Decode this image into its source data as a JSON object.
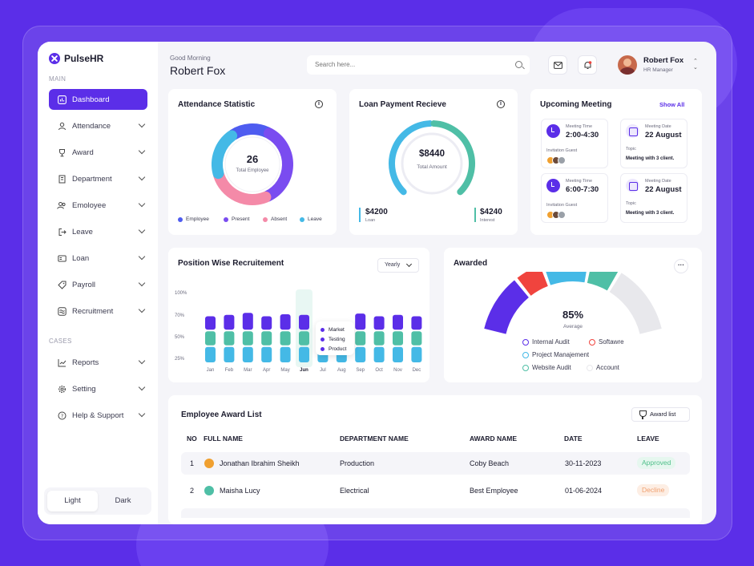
{
  "app": {
    "name": "PulseHR"
  },
  "colors": {
    "primary": "#5b2ee8",
    "teal": "#4fbfa6",
    "sky": "#44b9e6",
    "pink": "#f48aa8",
    "red": "#f0443e"
  },
  "sidebar": {
    "main_label": "MAIN",
    "cases_label": "CASES",
    "items": [
      {
        "label": "Dashboard",
        "icon": "chart-icon",
        "active": true
      },
      {
        "label": "Attendance",
        "icon": "user-icon"
      },
      {
        "label": "Award",
        "icon": "trophy-icon"
      },
      {
        "label": "Department",
        "icon": "building-icon"
      },
      {
        "label": "Emoloyee",
        "icon": "users-icon"
      },
      {
        "label": "Leave",
        "icon": "logout-icon"
      },
      {
        "label": "Loan",
        "icon": "card-icon"
      },
      {
        "label": "Payroll",
        "icon": "tag-icon"
      },
      {
        "label": "Recruitment",
        "icon": "wave-icon"
      }
    ],
    "cases": [
      {
        "label": "Reports",
        "icon": "line-chart-icon"
      },
      {
        "label": "Setting",
        "icon": "gear-icon"
      },
      {
        "label": "Help & Support",
        "icon": "help-icon"
      }
    ],
    "theme": {
      "light": "Light",
      "dark": "Dark"
    }
  },
  "header": {
    "greeting": "Good Morning",
    "name": "Robert Fox",
    "search_placeholder": "Search here...",
    "user": {
      "name": "Robert Fox",
      "role": "HR Manager"
    }
  },
  "attendance": {
    "title": "Attendance Statistic",
    "total": "26",
    "total_label": "Total Employee",
    "legend": [
      "Employee",
      "Present",
      "Absent",
      "Leave"
    ],
    "segments": [
      {
        "name": "Employee",
        "value": 17,
        "color": "#4e5cf0"
      },
      {
        "name": "Present",
        "value": 36,
        "color": "#7a4cf0"
      },
      {
        "name": "Absent",
        "value": 27,
        "color": "#f48aa8"
      },
      {
        "name": "Leave",
        "value": 20,
        "color": "#44b9e6"
      }
    ]
  },
  "loan": {
    "title": "Loan Payment Recieve",
    "amount": "$8440",
    "amount_label": "Total Amount",
    "left_value": "$4200",
    "left_label": "Loan",
    "right_value": "$4240",
    "right_label": "Interest",
    "loan_share": 0.5
  },
  "meetings": {
    "title": "Upcoming Meeting",
    "show_all": "Show All",
    "items": [
      {
        "time_label": "Meeting Time",
        "time": "2:00-4:30",
        "guest_label": "Invitation Guest",
        "date_label": "Meeting Date",
        "date": "22 August",
        "topic_label": "Topic",
        "topic": "Meeting with 3 client."
      },
      {
        "time_label": "Meeting Time",
        "time": "6:00-7:30",
        "guest_label": "Invitation Guest",
        "date_label": "Meeting Date",
        "date": "22 August",
        "topic_label": "Topic",
        "topic": "Meeting with 3 client."
      }
    ]
  },
  "recruitment": {
    "title": "Position Wise Recruitement",
    "filter": "Yearly",
    "tooltip": [
      "Market",
      "Testing",
      "Product"
    ],
    "chart_data": {
      "type": "bar",
      "categories": [
        "Jan",
        "Feb",
        "Mar",
        "Apr",
        "May",
        "Jun",
        "Jul",
        "Aug",
        "Sep",
        "Oct",
        "Nov",
        "Dec"
      ],
      "y_ticks": [
        "100%",
        "70%",
        "50%",
        "25%"
      ],
      "highlight": "Jun",
      "series": [
        {
          "name": "Product",
          "color": "#44b9e6",
          "values": [
            25,
            25,
            25,
            25,
            25,
            25,
            25,
            25,
            25,
            25,
            25,
            25
          ]
        },
        {
          "name": "Testing",
          "color": "#4fbfa6",
          "values": [
            23,
            23,
            23,
            23,
            23,
            23,
            23,
            23,
            23,
            23,
            23,
            23
          ]
        },
        {
          "name": "Market",
          "color": "#5b2ee8",
          "values": [
            22,
            24,
            27,
            22,
            25,
            24,
            8,
            10,
            26,
            22,
            24,
            22
          ]
        }
      ]
    }
  },
  "awarded": {
    "title": "Awarded",
    "percent": "85%",
    "label": "Average",
    "segments": [
      {
        "name": "Internal Audit",
        "color": "#5b2ee8",
        "value": 25
      },
      {
        "name": "Softawre",
        "color": "#f0443e",
        "value": 12
      },
      {
        "name": "Project Manajement",
        "color": "#44b9e6",
        "value": 20
      },
      {
        "name": "Website Audit",
        "color": "#4fbfa6",
        "value": 13
      },
      {
        "name": "Account",
        "color": "#e8e8ec",
        "value": 30
      }
    ]
  },
  "award_list": {
    "title": "Employee Award List",
    "button": "Award list",
    "columns": [
      "NO",
      "FULL NAME",
      "DEPARTMENT NAME",
      "AWARD NAME",
      "DATE",
      "LEAVE"
    ],
    "rows": [
      {
        "no": "1",
        "name": "Jonathan Ibrahim Sheikh",
        "department": "Production",
        "award": "Coby Beach",
        "date": "30-11-2023",
        "status": "Approved"
      },
      {
        "no": "2",
        "name": "Maisha Lucy",
        "department": "Electrical",
        "award": "Best Employee",
        "date": "01-06-2024",
        "status": "Decline"
      }
    ]
  }
}
